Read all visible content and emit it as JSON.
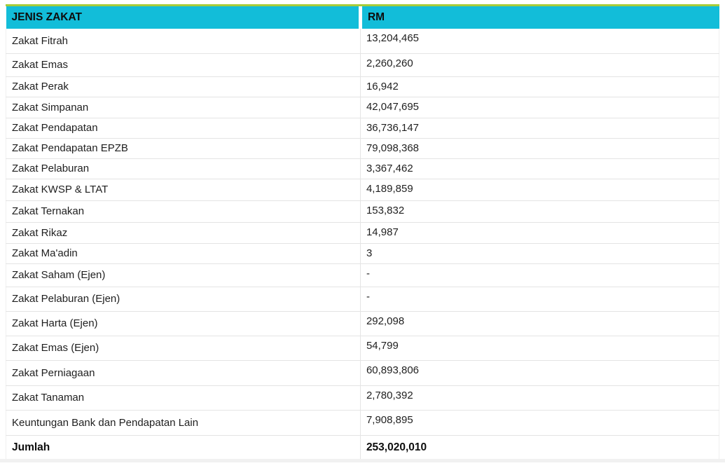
{
  "colors": {
    "header_bg": "#12BDD9",
    "accent_line": "#A6CC3A",
    "row_border": "#e4e4e4",
    "text": "#1f1f1f"
  },
  "table": {
    "columns": [
      "JENIS ZAKAT",
      "RM"
    ],
    "rows": [
      {
        "label": "Zakat Fitrah",
        "value": "13,204,465"
      },
      {
        "label": "Zakat Emas",
        "value": "2,260,260"
      },
      {
        "label": "Zakat Perak",
        "value": "16,942"
      },
      {
        "label": "Zakat Simpanan",
        "value": "42,047,695"
      },
      {
        "label": "Zakat Pendapatan",
        "value": "36,736,147"
      },
      {
        "label": "Zakat Pendapatan EPZB",
        "value": "79,098,368"
      },
      {
        "label": "Zakat Pelaburan",
        "value": "3,367,462"
      },
      {
        "label": "Zakat KWSP & LTAT",
        "value": "4,189,859"
      },
      {
        "label": "Zakat Ternakan",
        "value": "153,832"
      },
      {
        "label": "Zakat Rikaz",
        "value": "14,987"
      },
      {
        "label": "Zakat Ma'adin",
        "value": "3"
      },
      {
        "label": "Zakat Saham (Ejen)",
        "value": "-"
      },
      {
        "label": "Zakat Pelaburan (Ejen)",
        "value": "-"
      },
      {
        "label": "Zakat Harta (Ejen)",
        "value": "292,098"
      },
      {
        "label": "Zakat Emas (Ejen)",
        "value": "54,799"
      },
      {
        "label": "Zakat Perniagaan",
        "value": "60,893,806"
      },
      {
        "label": "Zakat Tanaman",
        "value": "2,780,392"
      },
      {
        "label": "Keuntungan Bank dan Pendapatan Lain",
        "value": "7,908,895"
      }
    ],
    "footer": {
      "label": "Jumlah",
      "value": "253,020,010"
    }
  }
}
